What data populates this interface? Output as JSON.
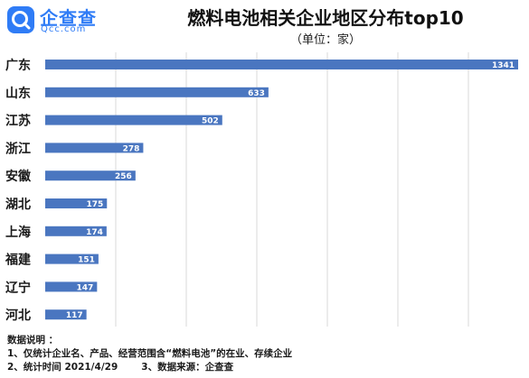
{
  "header": {
    "logo_cn": "企查查",
    "logo_en": "Qcc.com",
    "title": "燃料电池相关企业地区分布top10",
    "subtitle": "（单位：家）"
  },
  "colors": {
    "bar": "#4a76c0",
    "brand": "#2f7cf6",
    "grid": "#d9d9d9"
  },
  "chart_data": {
    "type": "bar",
    "orientation": "horizontal",
    "title": "燃料电池相关企业地区分布top10",
    "subtitle": "（单位：家）",
    "categories": [
      "广东",
      "山东",
      "江苏",
      "浙江",
      "安徽",
      "湖北",
      "上海",
      "福建",
      "辽宁",
      "河北"
    ],
    "values": [
      1341,
      633,
      502,
      278,
      256,
      175,
      174,
      151,
      147,
      117
    ],
    "xlim": [
      0,
      1341
    ],
    "grid": "vertical",
    "legend": "none",
    "data_labels": "inside-end"
  },
  "notes": {
    "heading": "数据说明 ：",
    "line1": "1、仅统计企业名、产品、经营范围含“燃料电池”的在业、存续企业",
    "line2a": "2、统计时间 2021/4/29",
    "line2b": "3、数据来源：企查查"
  }
}
